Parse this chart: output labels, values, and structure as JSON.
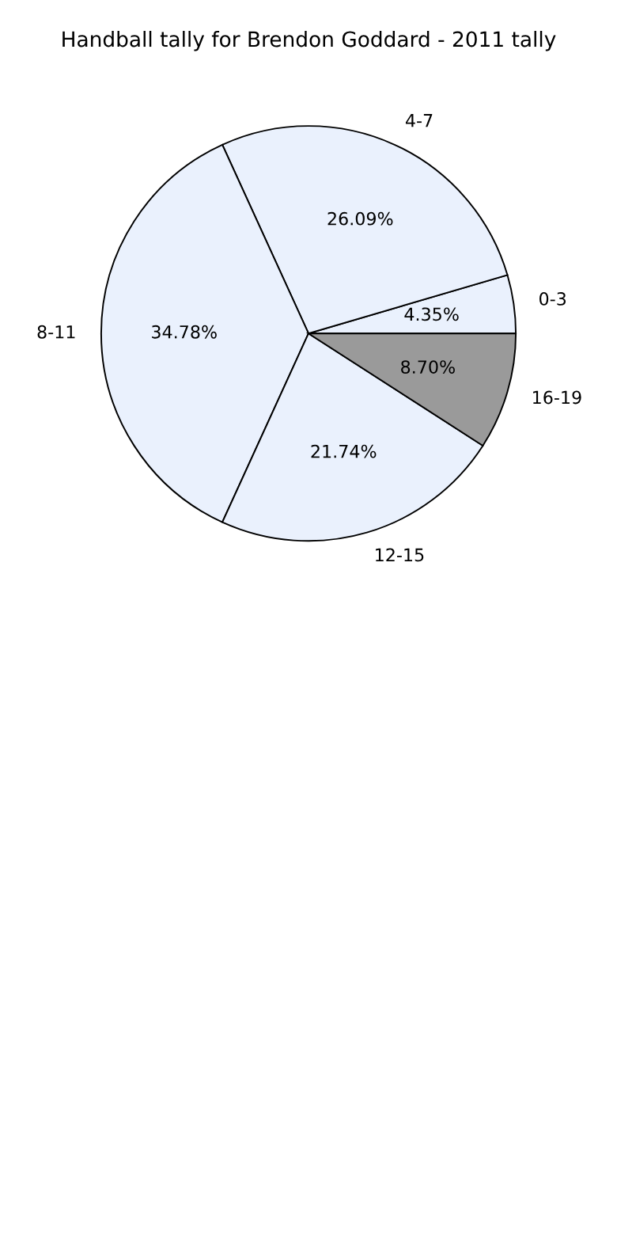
{
  "chart_data": {
    "type": "pie",
    "title": "Handball tally for Brendon Goddard - 2011 tally",
    "categories": [
      "0-3",
      "4-7",
      "8-11",
      "12-15",
      "16-19"
    ],
    "values": [
      4.35,
      26.09,
      34.78,
      21.74,
      8.7
    ],
    "value_labels": [
      "4.35%",
      "26.09%",
      "34.78%",
      "21.74%",
      "8.70%"
    ],
    "colors": [
      "#eaf1fd",
      "#eaf1fd",
      "#eaf1fd",
      "#eaf1fd",
      "#9a9a9a"
    ]
  }
}
